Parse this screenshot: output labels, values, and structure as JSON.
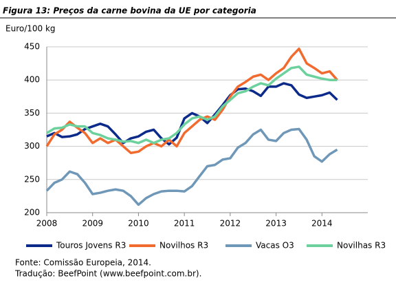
{
  "chart_data": {
    "type": "line",
    "title": "Figura 13: Preços da carne bovina da UE por categoria",
    "y_label": "Euro/100 kg",
    "x": [
      2008.0,
      2008.167,
      2008.333,
      2008.5,
      2008.667,
      2008.833,
      2009.0,
      2009.167,
      2009.333,
      2009.5,
      2009.667,
      2009.833,
      2010.0,
      2010.167,
      2010.333,
      2010.5,
      2010.667,
      2010.833,
      2011.0,
      2011.167,
      2011.333,
      2011.5,
      2011.667,
      2011.833,
      2012.0,
      2012.167,
      2012.333,
      2012.5,
      2012.667,
      2012.833,
      2013.0,
      2013.167,
      2013.333,
      2013.5,
      2013.667,
      2013.833,
      2014.0,
      2014.167,
      2014.333
    ],
    "series": [
      {
        "name": "Touros Jovens R3",
        "color": "#0b2a8a",
        "values": [
          315,
          320,
          314,
          315,
          318,
          326,
          330,
          334,
          330,
          318,
          305,
          312,
          315,
          322,
          325,
          312,
          303,
          313,
          342,
          350,
          345,
          335,
          348,
          362,
          377,
          386,
          387,
          383,
          376,
          390,
          390,
          395,
          392,
          378,
          373,
          375,
          377,
          381,
          370
        ]
      },
      {
        "name": "Novilhos R3",
        "color": "#f26b2e",
        "values": [
          300,
          318,
          325,
          337,
          328,
          320,
          305,
          312,
          305,
          310,
          300,
          290,
          292,
          300,
          305,
          300,
          310,
          300,
          320,
          330,
          340,
          345,
          340,
          355,
          375,
          390,
          397,
          405,
          408,
          400,
          410,
          418,
          435,
          447,
          425,
          418,
          410,
          413,
          400
        ]
      },
      {
        "name": "Vacas O3",
        "color": "#6f97b8",
        "values": [
          233,
          245,
          250,
          262,
          258,
          245,
          228,
          230,
          233,
          235,
          233,
          225,
          212,
          222,
          228,
          232,
          233,
          233,
          232,
          240,
          255,
          270,
          272,
          280,
          282,
          298,
          305,
          318,
          325,
          310,
          308,
          320,
          325,
          326,
          310,
          285,
          277,
          288,
          295
        ]
      },
      {
        "name": "Novilhas R3",
        "color": "#6cd19c",
        "values": [
          320,
          327,
          328,
          333,
          330,
          330,
          320,
          317,
          312,
          310,
          307,
          308,
          305,
          310,
          305,
          310,
          312,
          320,
          333,
          342,
          345,
          340,
          345,
          360,
          370,
          380,
          383,
          390,
          395,
          392,
          402,
          410,
          418,
          420,
          408,
          405,
          402,
          400,
          400
        ]
      }
    ],
    "xlim": [
      2008,
      2015
    ],
    "xticks": [
      2008,
      2009,
      2010,
      2011,
      2012,
      2013,
      2014
    ],
    "ylim": [
      200,
      450
    ],
    "yticks": [
      200,
      250,
      300,
      350,
      400,
      450
    ],
    "grid": true,
    "legend": "bottom",
    "notes": [
      "Fonte: Comissão Europeia, 2014.",
      "Tradução: BeefPoint (www.beefpoint.com.br)."
    ]
  }
}
